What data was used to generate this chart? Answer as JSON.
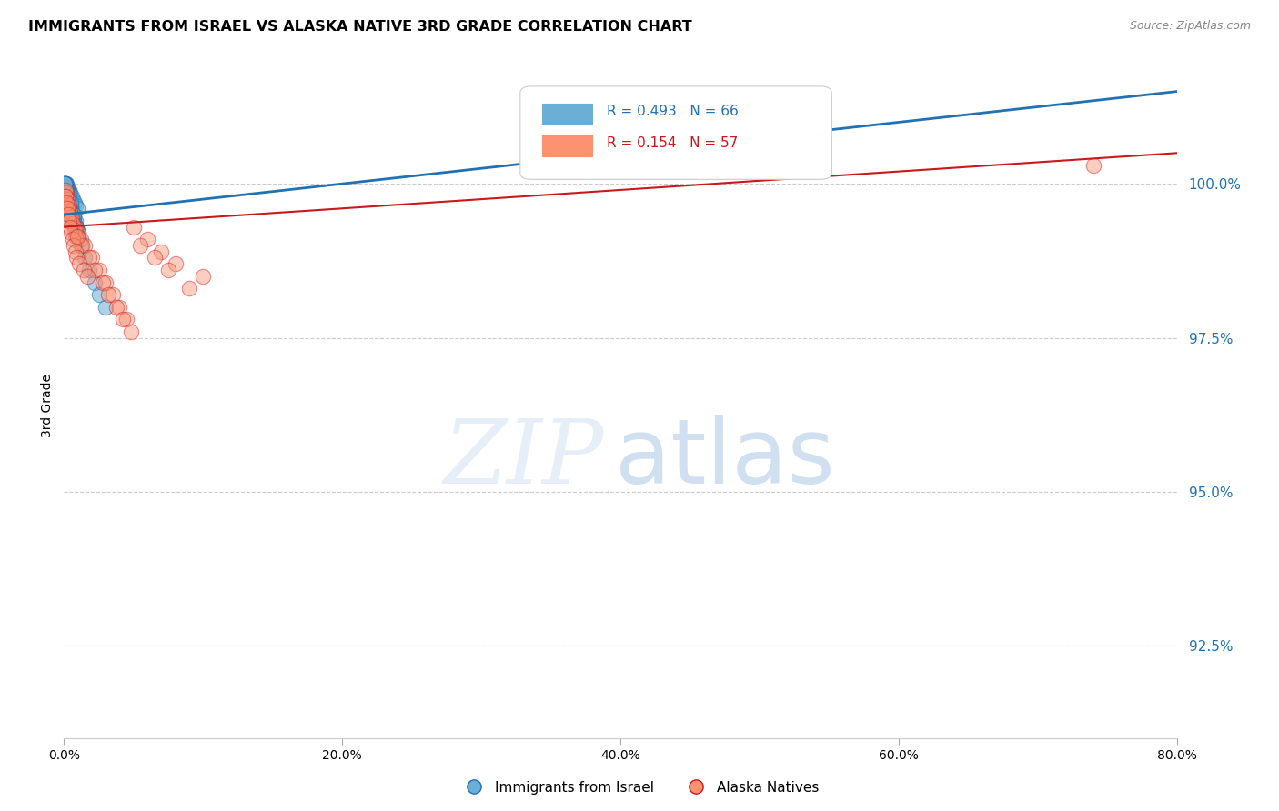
{
  "title": "IMMIGRANTS FROM ISRAEL VS ALASKA NATIVE 3RD GRADE CORRELATION CHART",
  "source": "Source: ZipAtlas.com",
  "ylabel": "3rd Grade",
  "x_min": 0.0,
  "x_max": 80.0,
  "y_min": 91.0,
  "y_max": 101.8,
  "yticks": [
    92.5,
    95.0,
    97.5,
    100.0
  ],
  "xticks": [
    0.0,
    20.0,
    40.0,
    60.0,
    80.0
  ],
  "blue_R": 0.493,
  "blue_N": 66,
  "pink_R": 0.154,
  "pink_N": 57,
  "blue_color": "#6baed6",
  "pink_color": "#fc9272",
  "blue_line_color": "#2171b5",
  "pink_line_color": "#cb181d",
  "legend_label_blue": "Immigrants from Israel",
  "legend_label_pink": "Alaska Natives",
  "blue_scatter_x": [
    0.1,
    0.2,
    0.3,
    0.4,
    0.5,
    0.6,
    0.7,
    0.8,
    0.9,
    1.0,
    0.15,
    0.25,
    0.35,
    0.45,
    0.55,
    0.65,
    0.75,
    0.85,
    0.95,
    1.1,
    0.12,
    0.22,
    0.32,
    0.42,
    0.52,
    0.62,
    0.72,
    0.82,
    0.92,
    1.2,
    0.08,
    0.18,
    0.28,
    0.38,
    0.48,
    0.58,
    0.68,
    0.78,
    0.88,
    1.5,
    0.05,
    0.1,
    0.15,
    0.2,
    0.06,
    0.07,
    0.09,
    0.11,
    0.13,
    0.14,
    0.16,
    0.17,
    0.19,
    0.21,
    0.23,
    0.25,
    1.8,
    2.2,
    2.5,
    3.0,
    0.04,
    0.03,
    0.02,
    0.5,
    0.7,
    0.9
  ],
  "blue_scatter_y": [
    99.9,
    99.8,
    99.7,
    99.85,
    99.75,
    99.6,
    99.5,
    99.4,
    99.3,
    99.2,
    100.0,
    99.95,
    99.9,
    99.85,
    99.8,
    99.75,
    99.7,
    99.65,
    99.6,
    99.1,
    100.0,
    99.9,
    99.8,
    99.7,
    99.6,
    99.5,
    99.4,
    99.3,
    99.2,
    99.0,
    100.0,
    99.95,
    99.85,
    99.75,
    99.65,
    99.55,
    99.45,
    99.35,
    99.25,
    98.8,
    100.0,
    100.0,
    99.95,
    99.9,
    100.0,
    100.0,
    99.95,
    99.9,
    99.85,
    99.8,
    99.75,
    99.7,
    99.65,
    99.6,
    99.55,
    99.5,
    98.6,
    98.4,
    98.2,
    98.0,
    100.0,
    100.0,
    100.0,
    99.7,
    99.5,
    99.3
  ],
  "pink_scatter_x": [
    0.1,
    0.2,
    0.3,
    0.5,
    0.6,
    0.8,
    1.0,
    1.2,
    1.5,
    2.0,
    2.5,
    3.0,
    3.5,
    4.0,
    4.5,
    5.0,
    6.0,
    7.0,
    8.0,
    10.0,
    0.15,
    0.25,
    0.35,
    0.45,
    0.55,
    0.65,
    0.75,
    0.85,
    1.3,
    1.8,
    2.2,
    2.8,
    3.2,
    3.8,
    4.2,
    4.8,
    5.5,
    6.5,
    7.5,
    9.0,
    0.08,
    0.12,
    0.18,
    0.22,
    0.28,
    0.38,
    0.42,
    0.52,
    0.62,
    0.72,
    0.82,
    0.92,
    1.1,
    1.4,
    1.7,
    74.0,
    0.95
  ],
  "pink_scatter_y": [
    99.8,
    99.7,
    99.6,
    99.5,
    99.4,
    99.3,
    99.2,
    99.1,
    99.0,
    98.8,
    98.6,
    98.4,
    98.2,
    98.0,
    97.8,
    99.3,
    99.1,
    98.9,
    98.7,
    98.5,
    99.85,
    99.75,
    99.65,
    99.55,
    99.45,
    99.35,
    99.25,
    99.15,
    99.0,
    98.8,
    98.6,
    98.4,
    98.2,
    98.0,
    97.8,
    97.6,
    99.0,
    98.8,
    98.6,
    98.3,
    99.9,
    99.8,
    99.7,
    99.6,
    99.5,
    99.4,
    99.3,
    99.2,
    99.1,
    99.0,
    98.9,
    98.8,
    98.7,
    98.6,
    98.5,
    100.3,
    99.15
  ],
  "blue_trend_x": [
    0.0,
    80.0
  ],
  "blue_trend_y": [
    99.5,
    101.5
  ],
  "pink_trend_x": [
    0.0,
    80.0
  ],
  "pink_trend_y": [
    99.3,
    100.5
  ]
}
